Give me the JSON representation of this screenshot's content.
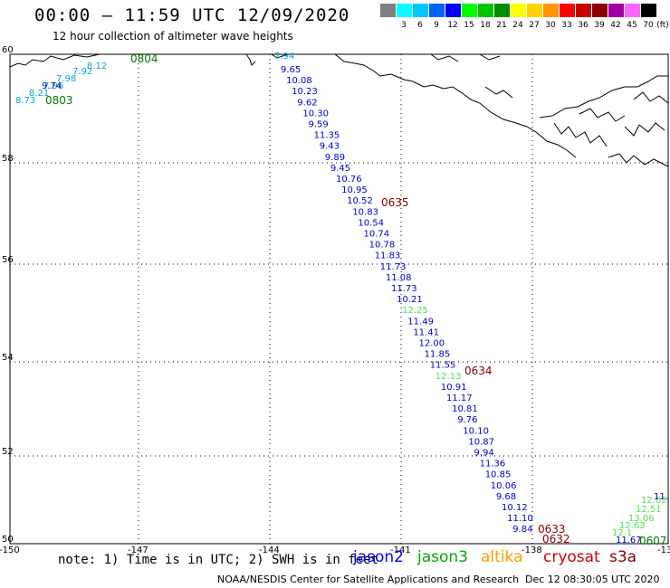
{
  "header": {
    "title": "00:00 – 11:59 UTC 12/09/2020",
    "subtitle": "12 hour collection of altimeter wave heights"
  },
  "scale": {
    "unit": "(ft)",
    "bins": [
      {
        "label": "",
        "color": "#7f7f7f"
      },
      {
        "label": "3",
        "color": "#00ffff"
      },
      {
        "label": "6",
        "color": "#00c8ff"
      },
      {
        "label": "9",
        "color": "#0064ff"
      },
      {
        "label": "12",
        "color": "#0000ff"
      },
      {
        "label": "15",
        "color": "#00ff00"
      },
      {
        "label": "18",
        "color": "#00c800"
      },
      {
        "label": "21",
        "color": "#008c00"
      },
      {
        "label": "24",
        "color": "#ffff00"
      },
      {
        "label": "27",
        "color": "#ffd200"
      },
      {
        "label": "30",
        "color": "#ff9600"
      },
      {
        "label": "33",
        "color": "#ff0000"
      },
      {
        "label": "36",
        "color": "#c80000"
      },
      {
        "label": "39",
        "color": "#8c0000"
      },
      {
        "label": "42",
        "color": "#a000a0"
      },
      {
        "label": "45",
        "color": "#ff64ff"
      },
      {
        "label": "70",
        "color": "#000000"
      }
    ]
  },
  "axes": {
    "lon_labels": [
      "-150",
      "-147",
      "-144",
      "-141",
      "-138",
      "-13"
    ],
    "lat_labels": [
      "60",
      "58",
      "56",
      "54",
      "52",
      "50"
    ]
  },
  "tracks": {
    "jason2": {
      "color": "#0000c8",
      "times": [],
      "values": [
        "9.65",
        "10.08",
        "10.23",
        "9.62",
        "10.30",
        "9.59",
        "11.35",
        "9.43",
        "9.89",
        "9.45",
        "10.76",
        "10.95",
        "10.52",
        "10.83",
        "10.54",
        "10.74",
        "10.78",
        "11.83",
        "11.73",
        "11.08",
        "11.73",
        "10.21",
        "11.49",
        "11.41",
        "12.00",
        "11.85",
        "11.55",
        "10.91",
        "11.17",
        "10.81",
        "9.76",
        "10.10",
        "10.87",
        "9.94",
        "11.36",
        "10.85",
        "10.06",
        "9.68",
        "10.12",
        "11.10",
        "9.84",
        "11.67"
      ]
    },
    "jason2_nw": {
      "values": [
        "9.74"
      ]
    },
    "cyan": {
      "color": "#00aacc",
      "values": [
        "7.94",
        "8.12",
        "7.92",
        "7.98",
        "7.96",
        "8.21",
        "8.73"
      ]
    },
    "jason3": {
      "color": "#55dd55",
      "values": [
        "12.25",
        "12.13",
        "12.1",
        "12.63",
        "13.06",
        "12.51",
        "12.02",
        "11."
      ]
    },
    "times": {
      "green": [
        "0804",
        "0803",
        "0607"
      ],
      "dark_red": [
        "0635",
        "0634",
        "0633",
        "0632"
      ]
    },
    "partial_right": "11."
  },
  "footer": {
    "note": "note: 1) Time is in UTC; 2) SWH is in feet",
    "legend": [
      {
        "label": "jason2",
        "color": "#0000ff"
      },
      {
        "label": "jason3",
        "color": "#00aa00"
      },
      {
        "label": "altika",
        "color": "#ff9900"
      },
      {
        "label": "cryosat",
        "color": "#cc0000"
      },
      {
        "label": "s3a",
        "color": "#880000"
      }
    ],
    "credit": "NOAA/NESDIS Center for Satellite Applications and Research",
    "stamp": "Dec 12 08:30:05 UTC 2020"
  }
}
